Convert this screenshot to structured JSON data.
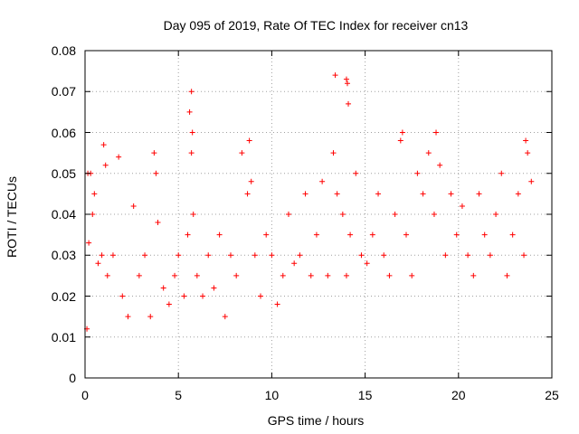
{
  "chart_data": {
    "type": "scatter",
    "title": "Day 095 of 2019, Rate Of TEC Index for receiver cn13",
    "xlabel": "GPS time / hours",
    "ylabel": "ROTI / TECUs",
    "xlim": [
      0,
      25
    ],
    "ylim": [
      0,
      0.08
    ],
    "x_ticks": [
      "0",
      "5",
      "10",
      "15",
      "20",
      "25"
    ],
    "y_ticks": [
      "0",
      "0.01",
      "0.02",
      "0.03",
      "0.04",
      "0.05",
      "0.06",
      "0.07",
      "0.08"
    ],
    "grid": true,
    "marker": "+",
    "color": "#ff0000",
    "series": [
      {
        "x": [
          0.1,
          0.2,
          0.3,
          0.5,
          0.7,
          0.9,
          1.0,
          1.2,
          1.5,
          1.8,
          2.0,
          2.3,
          2.6,
          2.9,
          3.2,
          3.5,
          3.7,
          3.9,
          4.2,
          4.5,
          4.8,
          5.0,
          5.3,
          5.5,
          5.6,
          5.7,
          5.8,
          6.0,
          6.3,
          6.6,
          6.9,
          7.2,
          7.5,
          7.8,
          8.1,
          8.4,
          8.7,
          8.9,
          9.1,
          9.4,
          9.7,
          10.0,
          10.3,
          10.6,
          10.9,
          11.2,
          11.5,
          11.8,
          12.1,
          12.4,
          12.7,
          13.0,
          13.3,
          13.5,
          13.8,
          14.0,
          14.2,
          14.5,
          14.8,
          15.1,
          15.4,
          15.7,
          16.0,
          16.3,
          16.6,
          16.9,
          17.2,
          17.5,
          17.8,
          18.1,
          18.4,
          18.7,
          19.0,
          19.3,
          19.6,
          19.9,
          20.2,
          20.5,
          20.8,
          21.1,
          21.4,
          21.7,
          22.0,
          22.3,
          22.6,
          22.9,
          23.2,
          23.5,
          23.7,
          23.9,
          0.15,
          0.4,
          1.1,
          3.8,
          5.7,
          5.75,
          8.8,
          13.4,
          14.0,
          14.05,
          14.1,
          17.0,
          18.8,
          23.6
        ],
        "y": [
          0.012,
          0.033,
          0.05,
          0.045,
          0.028,
          0.03,
          0.057,
          0.025,
          0.03,
          0.054,
          0.02,
          0.015,
          0.042,
          0.025,
          0.03,
          0.015,
          0.055,
          0.038,
          0.022,
          0.018,
          0.025,
          0.03,
          0.02,
          0.035,
          0.065,
          0.055,
          0.04,
          0.025,
          0.02,
          0.03,
          0.022,
          0.035,
          0.015,
          0.03,
          0.025,
          0.055,
          0.045,
          0.048,
          0.03,
          0.02,
          0.035,
          0.03,
          0.018,
          0.025,
          0.04,
          0.028,
          0.03,
          0.045,
          0.025,
          0.035,
          0.048,
          0.025,
          0.055,
          0.045,
          0.04,
          0.025,
          0.035,
          0.05,
          0.03,
          0.028,
          0.035,
          0.045,
          0.03,
          0.025,
          0.04,
          0.058,
          0.035,
          0.025,
          0.05,
          0.045,
          0.055,
          0.04,
          0.052,
          0.03,
          0.045,
          0.035,
          0.042,
          0.03,
          0.025,
          0.045,
          0.035,
          0.03,
          0.04,
          0.05,
          0.025,
          0.035,
          0.045,
          0.03,
          0.055,
          0.048,
          0.05,
          0.04,
          0.052,
          0.05,
          0.07,
          0.06,
          0.058,
          0.074,
          0.073,
          0.072,
          0.067,
          0.06,
          0.06,
          0.058
        ]
      }
    ]
  }
}
